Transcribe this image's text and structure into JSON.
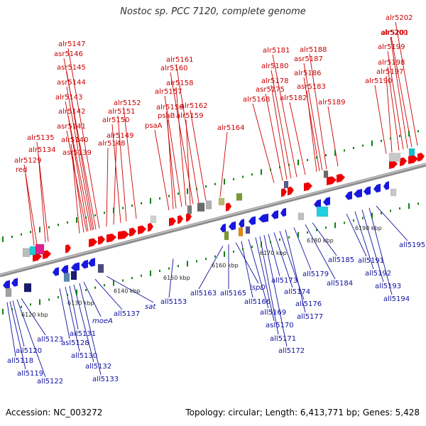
{
  "title": "Nostoc sp. PCC 7120, complete genome",
  "colors": {
    "red_label": "#cc0000",
    "blue_label": "#1010a0",
    "fwd_gene": "#ee0000",
    "rev_gene": "#1818dd",
    "tick": "#108010",
    "backbone": "#909090"
  },
  "footer": {
    "accession": "Accession: NC_003272",
    "summary": "Topology: circular; Length: 6,413,771 bp; Genes: 5,428"
  },
  "kbp_labels": [
    "6120 kbp",
    "6130 kbp",
    "6140 kbp",
    "6150 kbp",
    "6160 kbp",
    "6170 kbp",
    "6180 kbp",
    "6190 kbp"
  ],
  "forward_genes": [
    "red",
    "alr5129",
    "alr5134",
    "alr5135",
    "asr5139",
    "alr5140",
    "asr5141",
    "alr5142",
    "alr5143",
    "asr5144",
    "asr5145",
    "asr5146",
    "alr5147",
    "alr5148",
    "alr5149",
    "alr5150",
    "alr5151",
    "alr5152",
    "psaA",
    "psaB",
    "alr5156",
    "alr5157",
    "alr5158",
    "alr5159",
    "alr5160",
    "alr5161",
    "alr5162",
    "alr5164",
    "alr5168",
    "asr5175",
    "alr5178",
    "alr5180",
    "alr5181",
    "alr5182",
    "asr5183",
    "alr5186",
    "asr5187",
    "alr5188",
    "alr5189",
    "alr5190",
    "alr5197",
    "alr5198",
    "alr5199",
    "alr5200",
    "alr5201",
    "alr5202"
  ],
  "reverse_genes": [
    "all5118",
    "all5119",
    "all5120",
    "all5122",
    "all5123",
    "asl5128",
    "all5130",
    "all5131",
    "all5132",
    "all5133",
    "moeA",
    "all5137",
    "sat",
    "all5153",
    "all5163",
    "all5165",
    "ispD",
    "all5166",
    "all5169",
    "asl5170",
    "all5171",
    "all5172",
    "all5173",
    "all5174",
    "all5176",
    "all5177",
    "all5179",
    "all5184",
    "all5185",
    "all5191",
    "all5192",
    "all5193",
    "all5194",
    "all5195"
  ]
}
